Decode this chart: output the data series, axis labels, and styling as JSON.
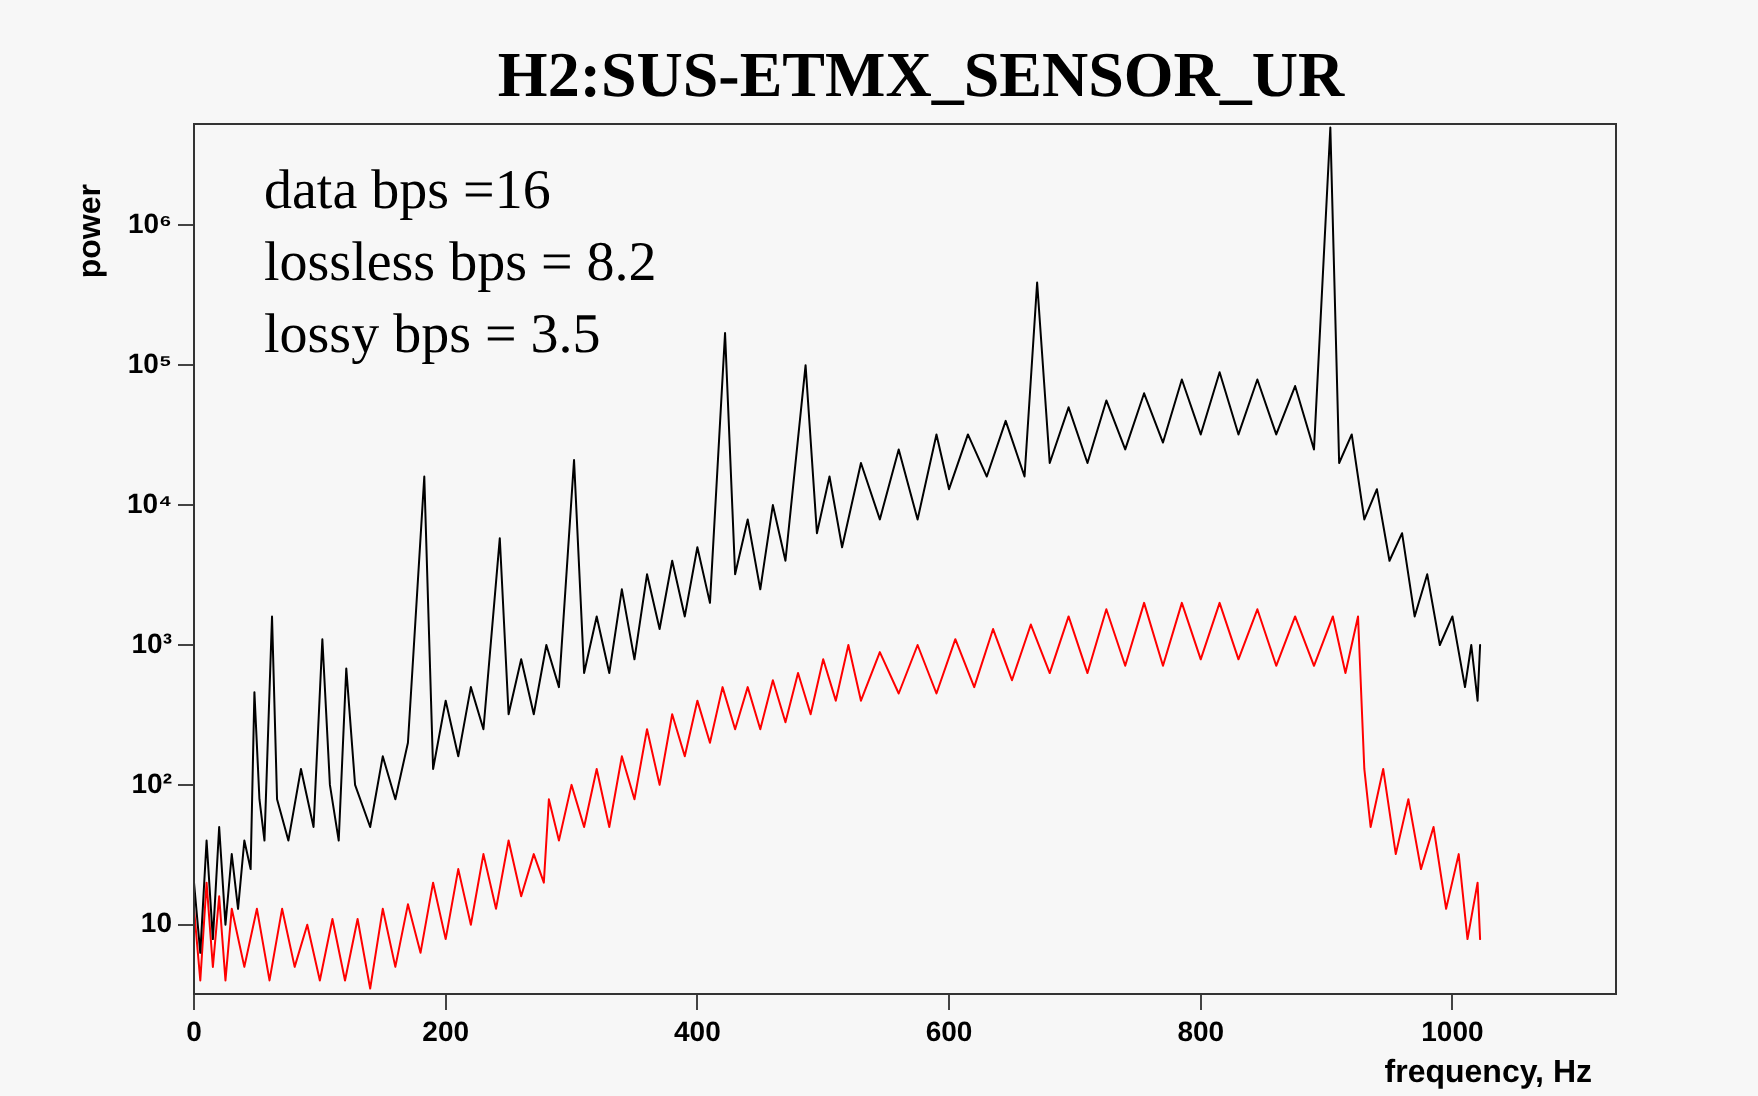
{
  "chart_data": {
    "type": "line",
    "title": "H2:SUS-ETMX_SENSOR_UR",
    "xlabel": "frequency, Hz",
    "ylabel": "power",
    "annotations": [
      "data bps =16",
      "lossless bps = 8.2",
      "lossy bps = 3.5"
    ],
    "log": "y",
    "grid": false,
    "legend": false,
    "marker": "none",
    "line_style": "solid",
    "xlim": [
      0,
      1130
    ],
    "xticks": [
      0,
      200,
      400,
      600,
      800,
      1000
    ],
    "ylim": [
      3.2,
      5300000
    ],
    "yticks": [
      {
        "value": 10,
        "label": "10"
      },
      {
        "value": 100,
        "label": "10²"
      },
      {
        "value": 1000,
        "label": "10³"
      },
      {
        "value": 10000,
        "label": "10⁴"
      },
      {
        "value": 100000,
        "label": "10⁵"
      },
      {
        "value": 1000000,
        "label": "10⁶"
      }
    ],
    "series": [
      {
        "color": "#000000",
        "x": [
          0,
          5,
          10,
          15,
          20,
          25,
          30,
          35,
          40,
          45,
          48,
          52,
          56,
          62,
          66,
          75,
          85,
          95,
          102,
          108,
          115,
          121,
          128,
          140,
          150,
          160,
          170,
          183,
          190,
          200,
          210,
          220,
          230,
          243,
          250,
          260,
          270,
          280,
          290,
          302,
          310,
          320,
          330,
          340,
          350,
          360,
          370,
          380,
          390,
          400,
          410,
          422,
          430,
          440,
          450,
          460,
          470,
          486,
          495,
          505,
          515,
          530,
          545,
          560,
          575,
          590,
          600,
          615,
          630,
          645,
          660,
          670,
          680,
          695,
          710,
          725,
          740,
          755,
          770,
          785,
          800,
          815,
          830,
          845,
          860,
          875,
          890,
          903,
          910,
          920,
          930,
          940,
          950,
          960,
          970,
          980,
          990,
          1000,
          1010,
          1015,
          1020,
          1022
        ],
        "values": [
          20,
          6.3,
          40,
          7.9,
          50,
          10,
          32,
          13,
          40,
          25,
          460,
          79,
          40,
          1600,
          79,
          40,
          130,
          50,
          1100,
          100,
          40,
          680,
          100,
          50,
          160,
          79,
          200,
          16000,
          130,
          400,
          160,
          500,
          250,
          5800,
          320,
          790,
          320,
          1000,
          500,
          21000,
          630,
          1600,
          630,
          2500,
          790,
          3200,
          1300,
          4000,
          1600,
          5000,
          2000,
          170000,
          3200,
          7900,
          2500,
          10000,
          4000,
          100000,
          6300,
          16000,
          5000,
          20000,
          7900,
          25000,
          7900,
          32000,
          13000,
          32000,
          16000,
          40000,
          16000,
          390000,
          20000,
          50000,
          20000,
          56000,
          25000,
          63000,
          28000,
          79000,
          32000,
          89000,
          32000,
          79000,
          32000,
          71000,
          25000,
          5000000,
          20000,
          32000,
          7900,
          13000,
          4000,
          6300,
          1600,
          3200,
          1000,
          1600,
          500,
          1000,
          400,
          1000
        ]
      },
      {
        "color": "#ff0000",
        "x": [
          0,
          5,
          10,
          15,
          20,
          25,
          30,
          40,
          50,
          60,
          70,
          80,
          90,
          100,
          110,
          120,
          130,
          140,
          150,
          160,
          170,
          180,
          190,
          200,
          210,
          220,
          230,
          240,
          250,
          260,
          270,
          278,
          282,
          290,
          300,
          310,
          320,
          330,
          340,
          350,
          360,
          370,
          380,
          390,
          400,
          410,
          420,
          430,
          440,
          450,
          460,
          470,
          480,
          490,
          500,
          510,
          520,
          530,
          545,
          560,
          575,
          590,
          605,
          620,
          635,
          650,
          665,
          680,
          695,
          710,
          725,
          740,
          755,
          770,
          785,
          800,
          815,
          830,
          845,
          860,
          875,
          890,
          905,
          915,
          925,
          930,
          935,
          945,
          955,
          965,
          975,
          985,
          995,
          1005,
          1012,
          1020,
          1022
        ],
        "values": [
          13,
          4,
          20,
          5,
          16,
          4,
          13,
          5,
          13,
          4,
          13,
          5,
          10,
          4,
          11,
          4,
          11,
          3.5,
          13,
          5,
          14,
          6.3,
          20,
          7.9,
          25,
          10,
          32,
          13,
          40,
          16,
          32,
          20,
          79,
          40,
          100,
          50,
          130,
          50,
          160,
          79,
          250,
          100,
          320,
          160,
          400,
          200,
          500,
          250,
          500,
          250,
          560,
          280,
          630,
          320,
          790,
          400,
          1000,
          400,
          890,
          450,
          1000,
          450,
          1100,
          500,
          1300,
          560,
          1400,
          630,
          1600,
          630,
          1800,
          710,
          2000,
          710,
          2000,
          790,
          2000,
          790,
          1800,
          710,
          1600,
          710,
          1600,
          630,
          1600,
          130,
          50,
          130,
          32,
          79,
          25,
          50,
          13,
          32,
          7.9,
          20,
          7.9
        ]
      }
    ]
  }
}
